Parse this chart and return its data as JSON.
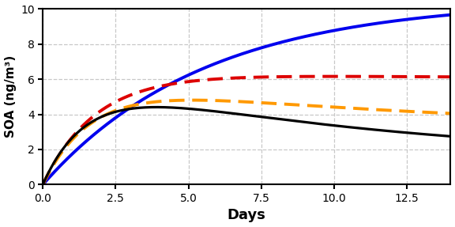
{
  "title": "",
  "xlabel": "Days",
  "ylabel": "SOA (ng/m³)",
  "xlim": [
    0,
    14
  ],
  "ylim": [
    0,
    10
  ],
  "xticks": [
    0.0,
    2.5,
    5.0,
    7.5,
    10.0,
    12.5
  ],
  "yticks": [
    0,
    2,
    4,
    6,
    8,
    10
  ],
  "grid_color": "#c8c8c8",
  "background_color": "#ffffff",
  "curves": [
    {
      "label": "blue_solid",
      "color": "#0000ee",
      "linestyle": "solid",
      "linewidth": 2.8,
      "type": "blue"
    },
    {
      "label": "red_dashed",
      "color": "#dd0000",
      "linestyle": "dashed",
      "linewidth": 2.8,
      "type": "red"
    },
    {
      "label": "orange_dashed",
      "color": "#ff9900",
      "linestyle": "dashed",
      "linewidth": 2.8,
      "type": "orange"
    },
    {
      "label": "black_solid",
      "color": "#000000",
      "linestyle": "solid",
      "linewidth": 2.3,
      "type": "black"
    }
  ]
}
